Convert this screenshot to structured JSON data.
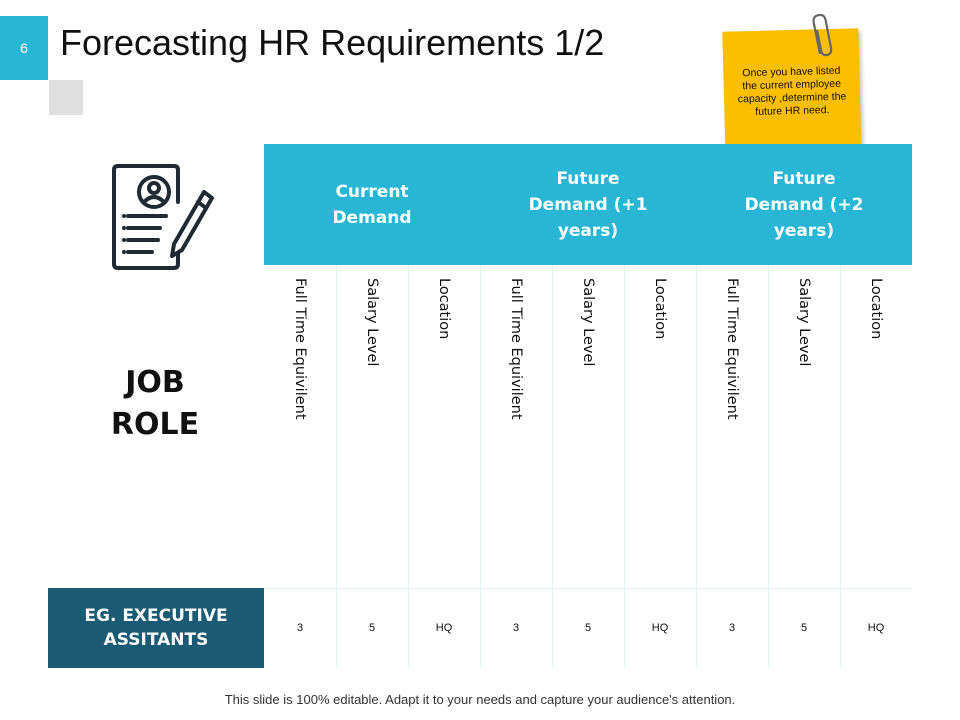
{
  "slide_number": 6,
  "title": "Forecasting HR Requirements 1/2",
  "note": "Once you have listed the current employee capacity ,determine the future HR need.",
  "table": {
    "row_header": "JOB ROLE",
    "groups": [
      "Current Demand",
      "Future Demand (+1 years)",
      "Future Demand (+2 years)"
    ],
    "columns": [
      "Full Time Equivilent",
      "Salary Level",
      "Location",
      "Full Time Equivilent",
      "Salary Level",
      "Location",
      "Full Time Equivilent",
      "Salary Level",
      "Location"
    ],
    "rows": [
      {
        "label": "EG. EXECUTIVE ASSITANTS",
        "cells": [
          3,
          5,
          "HQ",
          3,
          5,
          "HQ",
          3,
          5,
          "HQ"
        ]
      }
    ]
  },
  "footer": "This slide is 100% editable. Adapt it to your needs and capture your audience's attention."
}
